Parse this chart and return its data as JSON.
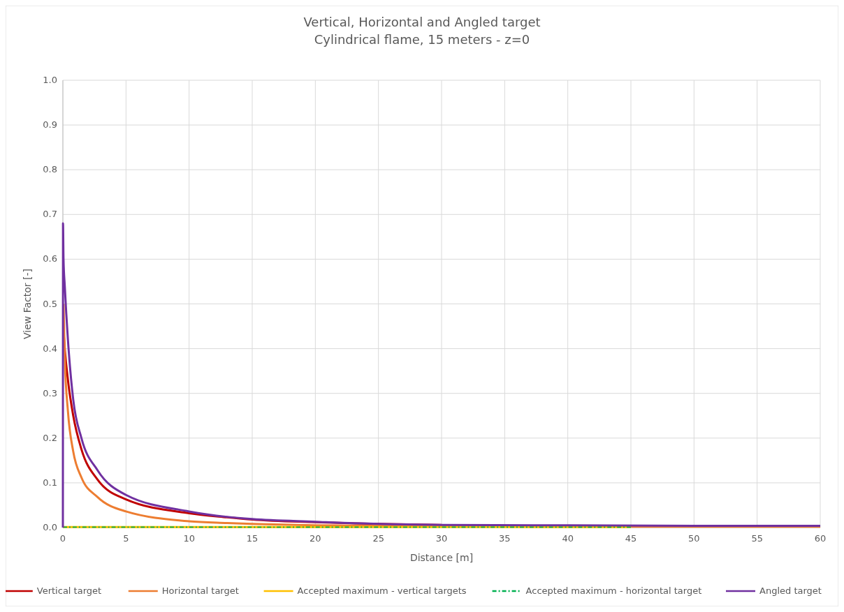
{
  "chart_data": {
    "type": "line",
    "title": "Vertical, Horizontal and Angled target",
    "subtitle": "Cylindrical flame, 15 meters - z=0",
    "xlabel": "Distance [m]",
    "ylabel": "View Factor [-]",
    "xlim": [
      0,
      60
    ],
    "xticks": [
      0,
      5,
      10,
      15,
      20,
      25,
      30,
      35,
      40,
      45,
      50,
      55,
      60
    ],
    "ylim": [
      0,
      1
    ],
    "yticks": [
      {
        "value": 0,
        "label": "0.0"
      },
      {
        "value": 0.1,
        "label": "0.1"
      },
      {
        "value": 0.2,
        "label": "0.2"
      },
      {
        "value": 0.3,
        "label": "0.3"
      },
      {
        "value": 0.4,
        "label": "0.4"
      },
      {
        "value": 0.5,
        "label": "0.5"
      },
      {
        "value": 0.6,
        "label": "0.6"
      },
      {
        "value": 0.7,
        "label": "0.7"
      },
      {
        "value": 0.8,
        "label": "0.8"
      },
      {
        "value": 0.9,
        "label": "0.9"
      },
      {
        "value": 1,
        "label": "1.0"
      }
    ],
    "grid": true,
    "legend": "bottom",
    "marker": "none",
    "series": [
      {
        "name": "Vertical target",
        "color": "#c00000",
        "line_style": "solid",
        "x": [
          0.05,
          0.15,
          0.4,
          0.82,
          1.47,
          2.75,
          5,
          10,
          13,
          15,
          20,
          25,
          30
        ],
        "values": [
          0.44,
          0.4,
          0.33,
          0.25,
          0.175,
          0.107,
          0.063,
          0.032,
          0.023,
          0.018,
          0.012,
          0.008,
          0.006
        ]
      },
      {
        "name": "Horizontal target",
        "color": "#ed7d31",
        "line_style": "solid",
        "x": [
          0.05,
          0.15,
          0.4,
          0.82,
          1.47,
          2.75,
          5,
          10,
          13,
          15,
          20,
          25,
          30,
          40,
          50,
          60
        ],
        "values": [
          0.5,
          0.38,
          0.26,
          0.17,
          0.112,
          0.068,
          0.036,
          0.014,
          0.01,
          0.008,
          0.005,
          0.004,
          0.003,
          0.002,
          0.002,
          0.002
        ]
      },
      {
        "name": "Accepted maximum - vertical targets",
        "color": "#ffc000",
        "line_style": "solid",
        "x": [
          0,
          45
        ],
        "values": [
          0.001,
          0.001
        ]
      },
      {
        "name": "Accepted maximum - horizontal target",
        "color": "#00b050",
        "line_style": "dashed",
        "x": [
          0,
          45
        ],
        "values": [
          0.001,
          0.001
        ]
      },
      {
        "name": "Angled target",
        "color": "#7030a0",
        "line_style": "solid",
        "x": [
          0,
          0.01,
          0.05,
          0.15,
          0.4,
          0.82,
          1.47,
          2.75,
          5,
          10,
          13,
          15,
          20,
          25,
          30,
          40,
          50,
          60
        ],
        "values": [
          0,
          0.68,
          0.6,
          0.54,
          0.42,
          0.286,
          0.2,
          0.128,
          0.073,
          0.036,
          0.024,
          0.019,
          0.013,
          0.008,
          0.006,
          0.005,
          0.004,
          0.004
        ]
      }
    ]
  }
}
